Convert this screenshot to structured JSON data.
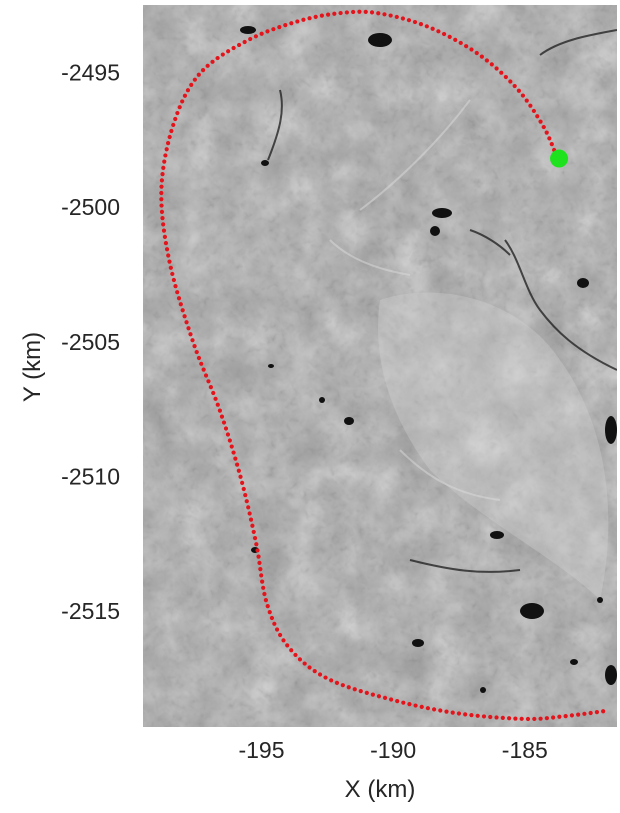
{
  "chart_data": {
    "type": "scatter",
    "title": "",
    "xlabel": "X (km)",
    "ylabel": "Y (km)",
    "xlim": [
      -199.5,
      -181.5
    ],
    "ylim": [
      -2519.3,
      -2492.5
    ],
    "xticks": [
      -195,
      -190,
      -185
    ],
    "xtick_labels": [
      "-195",
      "-190",
      "-185"
    ],
    "yticks": [
      -2495,
      -2500,
      -2505,
      -2510,
      -2515
    ],
    "ytick_labels": [
      "-2495",
      "-2500",
      "-2505",
      "-2510",
      "-2515"
    ],
    "background": "grayscale satellite sea-ice image",
    "grid": false,
    "series": [
      {
        "style": "dotted red track",
        "color": "#e3141b",
        "control_points": [
          [
            -183.8,
            -2498.1
          ],
          [
            -184.3,
            -2497.0
          ],
          [
            -185.3,
            -2495.6
          ],
          [
            -186.8,
            -2494.3
          ],
          [
            -188.7,
            -2493.3
          ],
          [
            -190.6,
            -2492.8
          ],
          [
            -192.0,
            -2492.8
          ],
          [
            -193.6,
            -2493.1
          ],
          [
            -195.5,
            -2493.8
          ],
          [
            -197.3,
            -2495.0
          ],
          [
            -198.3,
            -2496.8
          ],
          [
            -198.8,
            -2499.3
          ],
          [
            -198.5,
            -2502.0
          ],
          [
            -197.6,
            -2505.0
          ],
          [
            -196.6,
            -2507.5
          ],
          [
            -195.8,
            -2510.0
          ],
          [
            -195.2,
            -2512.5
          ],
          [
            -194.8,
            -2514.7
          ],
          [
            -194.0,
            -2516.3
          ],
          [
            -192.5,
            -2517.5
          ],
          [
            -190.0,
            -2518.3
          ],
          [
            -187.5,
            -2518.8
          ],
          [
            -185.0,
            -2519.0
          ],
          [
            -183.5,
            -2518.9
          ],
          [
            -181.9,
            -2518.7
          ]
        ]
      },
      {
        "style": "green marker (start position)",
        "color": "#1de21d",
        "points": [
          [
            -183.7,
            -2498.2
          ]
        ]
      }
    ]
  }
}
